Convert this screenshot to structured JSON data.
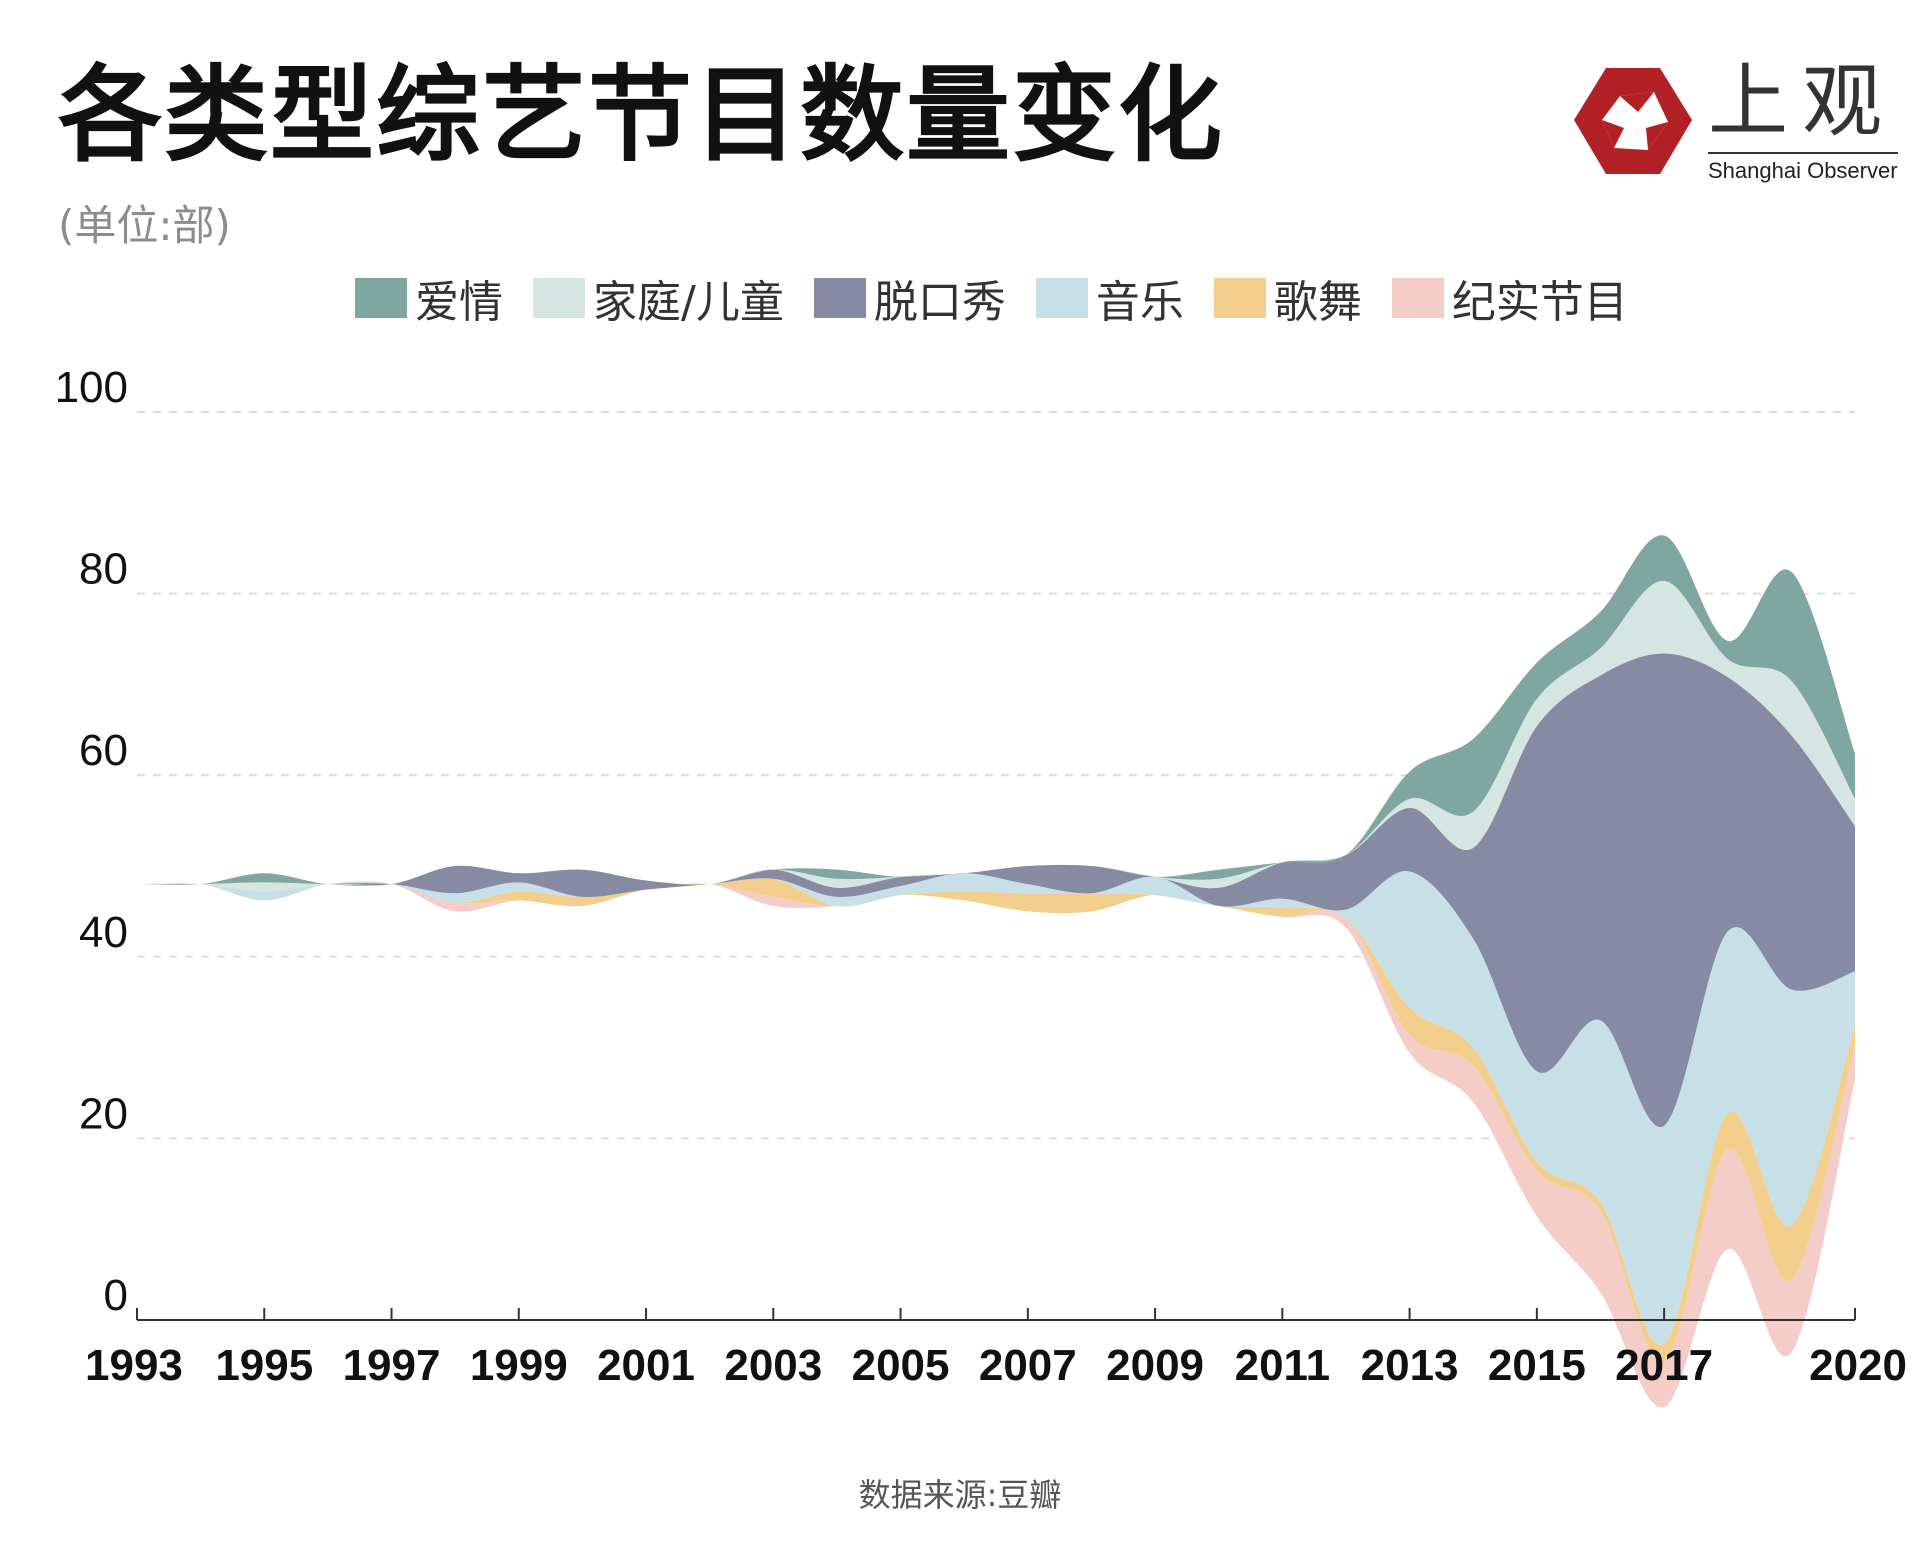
{
  "title": "各类型综艺节目数量变化",
  "unit": "(单位:部)",
  "source": "数据来源:豆瓣",
  "logo": {
    "cn": "上观",
    "en": "Shanghai Observer",
    "color": "#b32025"
  },
  "chart_data": {
    "type": "area",
    "stacked": true,
    "baseline": "wiggle",
    "x": [
      1993,
      1994,
      1995,
      1996,
      1997,
      1998,
      1999,
      2000,
      2001,
      2002,
      2003,
      2004,
      2005,
      2006,
      2007,
      2008,
      2009,
      2010,
      2011,
      2012,
      2013,
      2014,
      2015,
      2016,
      2017,
      2018,
      2019,
      2020
    ],
    "series": [
      {
        "name": "纪实节目",
        "color": "#f4cdc8",
        "values": [
          0,
          0,
          0,
          0,
          0,
          1,
          0,
          0,
          0,
          0,
          1,
          0,
          0,
          0,
          0,
          0,
          0,
          0,
          0,
          1,
          2,
          4,
          5,
          9,
          5,
          11,
          8,
          4
        ]
      },
      {
        "name": "歌舞",
        "color": "#f3cf8e",
        "values": [
          0,
          0,
          0,
          0,
          0,
          0,
          1,
          1,
          0,
          0,
          2,
          0,
          0,
          1,
          2,
          2,
          0,
          0,
          1,
          0,
          3,
          2,
          1,
          1,
          2,
          4,
          6,
          2
        ]
      },
      {
        "name": "音乐",
        "color": "#c7e0e7",
        "values": [
          0,
          0,
          1,
          0,
          0,
          1,
          1,
          0,
          0,
          0,
          0,
          1,
          1,
          2,
          1,
          0,
          2,
          0,
          1,
          1,
          15,
          12,
          10,
          20,
          24,
          20,
          26,
          6
        ]
      },
      {
        "name": "脱口秀",
        "color": "#868aa2",
        "values": [
          0,
          0,
          0,
          0,
          0,
          3,
          1,
          3,
          1,
          0,
          1,
          1,
          1,
          0,
          2,
          3,
          0,
          2,
          4,
          6,
          7,
          10,
          38,
          38,
          52,
          28,
          28,
          16
        ]
      },
      {
        "name": "家庭/儿童",
        "color": "#d5e5e2",
        "values": [
          0,
          0,
          1,
          0,
          0,
          0,
          0,
          0,
          0,
          0,
          0,
          1,
          0,
          0,
          0,
          0,
          0,
          1,
          0,
          0,
          1,
          4,
          3,
          3,
          8,
          2,
          6,
          3
        ]
      },
      {
        "name": "爱情",
        "color": "#7fa6a0",
        "values": [
          0,
          0,
          1,
          0,
          0,
          0,
          0,
          0,
          0,
          0,
          0,
          1,
          0,
          0,
          0,
          0,
          0,
          1,
          0,
          0,
          3,
          8,
          4,
          4,
          5,
          2,
          12,
          5
        ]
      }
    ],
    "ylim": [
      0,
      100
    ],
    "yticks": [
      0,
      20,
      40,
      60,
      80,
      100
    ],
    "xticks": [
      1993,
      1995,
      1997,
      1999,
      2001,
      2003,
      2005,
      2007,
      2009,
      2011,
      2013,
      2015,
      2017,
      2020
    ],
    "grid": true,
    "legend_position": "top"
  }
}
